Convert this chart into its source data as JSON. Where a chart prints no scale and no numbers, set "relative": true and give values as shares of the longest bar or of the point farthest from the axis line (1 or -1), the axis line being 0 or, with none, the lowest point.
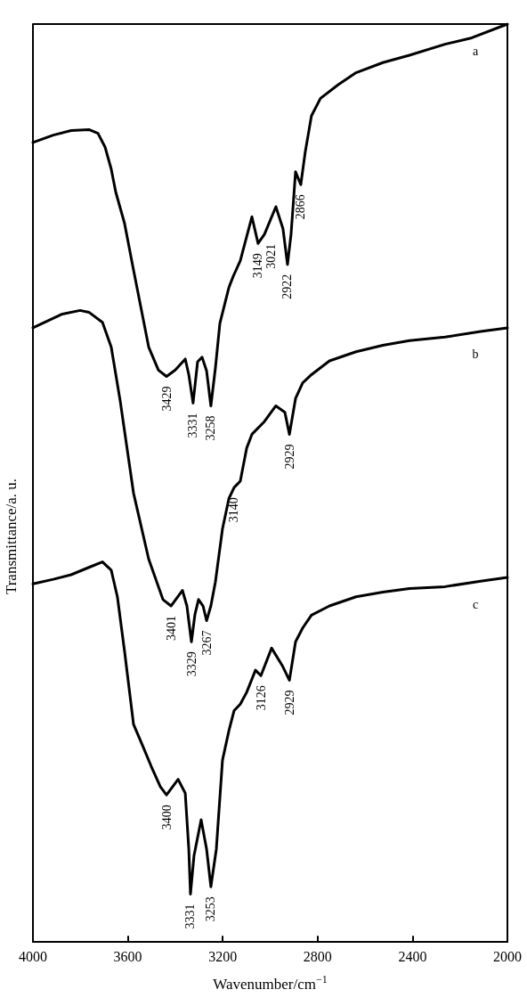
{
  "chart_data": {
    "type": "line",
    "relative": true,
    "xlabel": "Wavenumber/cm$^{−1}$",
    "ylabel": "Transmittance/a. u.",
    "xlim": [
      4000,
      2000
    ],
    "xticks": [
      4000,
      3600,
      3200,
      2800,
      2400,
      2000
    ],
    "grid": false,
    "legend": false,
    "marker": "none",
    "line_style": "solid",
    "series": [
      {
        "name": "a",
        "color": "#000000",
        "x": [
          4000,
          3914,
          3839,
          3764,
          3726,
          3696,
          3670,
          3651,
          3614,
          3576,
          3512,
          3471,
          3437,
          3400,
          3358,
          3343,
          3325,
          3306,
          3287,
          3268,
          3250,
          3231,
          3212,
          3174,
          3156,
          3126,
          3077,
          3051,
          3024,
          2976,
          2946,
          2927,
          2912,
          2893,
          2871,
          2852,
          2826,
          2788,
          2713,
          2638,
          2525,
          2413,
          2263,
          2150,
          2000
        ],
        "values": [
          0.871,
          0.879,
          0.884,
          0.885,
          0.881,
          0.866,
          0.842,
          0.817,
          0.783,
          0.732,
          0.648,
          0.623,
          0.616,
          0.623,
          0.635,
          0.618,
          0.587,
          0.632,
          0.637,
          0.622,
          0.584,
          0.625,
          0.674,
          0.713,
          0.725,
          0.742,
          0.79,
          0.761,
          0.771,
          0.801,
          0.777,
          0.738,
          0.771,
          0.839,
          0.825,
          0.861,
          0.9,
          0.919,
          0.934,
          0.947,
          0.958,
          0.966,
          0.978,
          0.985,
          1.0
        ]
      },
      {
        "name": "b",
        "color": "#000000",
        "x": [
          4000,
          3876,
          3801,
          3764,
          3707,
          3670,
          3632,
          3576,
          3512,
          3452,
          3418,
          3370,
          3351,
          3332,
          3317,
          3302,
          3283,
          3268,
          3250,
          3231,
          3201,
          3174,
          3152,
          3126,
          3099,
          3077,
          3024,
          2976,
          2938,
          2919,
          2893,
          2863,
          2826,
          2750,
          2638,
          2525,
          2413,
          2263,
          2113,
          2000
        ],
        "values": [
          0.669,
          0.684,
          0.688,
          0.686,
          0.675,
          0.648,
          0.589,
          0.489,
          0.417,
          0.373,
          0.366,
          0.383,
          0.366,
          0.327,
          0.357,
          0.373,
          0.366,
          0.35,
          0.366,
          0.392,
          0.45,
          0.483,
          0.495,
          0.502,
          0.538,
          0.553,
          0.567,
          0.584,
          0.577,
          0.553,
          0.592,
          0.609,
          0.618,
          0.633,
          0.643,
          0.65,
          0.655,
          0.659,
          0.665,
          0.669
        ]
      },
      {
        "name": "c",
        "color": "#000000",
        "x": [
          4000,
          3914,
          3839,
          3764,
          3707,
          3670,
          3644,
          3614,
          3576,
          3538,
          3501,
          3463,
          3437,
          3388,
          3358,
          3343,
          3336,
          3321,
          3291,
          3268,
          3250,
          3227,
          3201,
          3174,
          3152,
          3126,
          3099,
          3062,
          3039,
          2994,
          2949,
          2919,
          2893,
          2863,
          2826,
          2750,
          2638,
          2525,
          2413,
          2263,
          2113,
          2000
        ],
        "values": [
          0.39,
          0.395,
          0.4,
          0.408,
          0.414,
          0.405,
          0.376,
          0.317,
          0.237,
          0.214,
          0.191,
          0.169,
          0.16,
          0.177,
          0.162,
          0.101,
          0.052,
          0.094,
          0.133,
          0.101,
          0.06,
          0.101,
          0.198,
          0.23,
          0.252,
          0.259,
          0.272,
          0.296,
          0.29,
          0.32,
          0.301,
          0.285,
          0.327,
          0.342,
          0.356,
          0.366,
          0.376,
          0.381,
          0.385,
          0.387,
          0.393,
          0.397
        ]
      }
    ],
    "annotations": [
      {
        "text": "3429",
        "x": 3437,
        "y": 0.616
      },
      {
        "text": "3331",
        "x": 3325,
        "y": 0.587
      },
      {
        "text": "3258",
        "x": 3250,
        "y": 0.584
      },
      {
        "text": "3149",
        "x": 3051,
        "y": 0.761
      },
      {
        "text": "3021",
        "x": 3024,
        "y": 0.771
      },
      {
        "text": "2922",
        "x": 2927,
        "y": 0.738
      },
      {
        "text": "2866",
        "x": 2871,
        "y": 0.825
      },
      {
        "text": "3401",
        "x": 3418,
        "y": 0.366
      },
      {
        "text": "3329",
        "x": 3332,
        "y": 0.327
      },
      {
        "text": "3267",
        "x": 3268,
        "y": 0.35
      },
      {
        "text": "3140",
        "x": 3152,
        "y": 0.495
      },
      {
        "text": "2929",
        "x": 2919,
        "y": 0.553
      },
      {
        "text": "3400",
        "x": 3437,
        "y": 0.16
      },
      {
        "text": "3331",
        "x": 3336,
        "y": 0.052
      },
      {
        "text": "3253",
        "x": 3250,
        "y": 0.06
      },
      {
        "text": "3126",
        "x": 3039,
        "y": 0.29
      },
      {
        "text": "2929",
        "x": 2919,
        "y": 0.285
      }
    ]
  }
}
